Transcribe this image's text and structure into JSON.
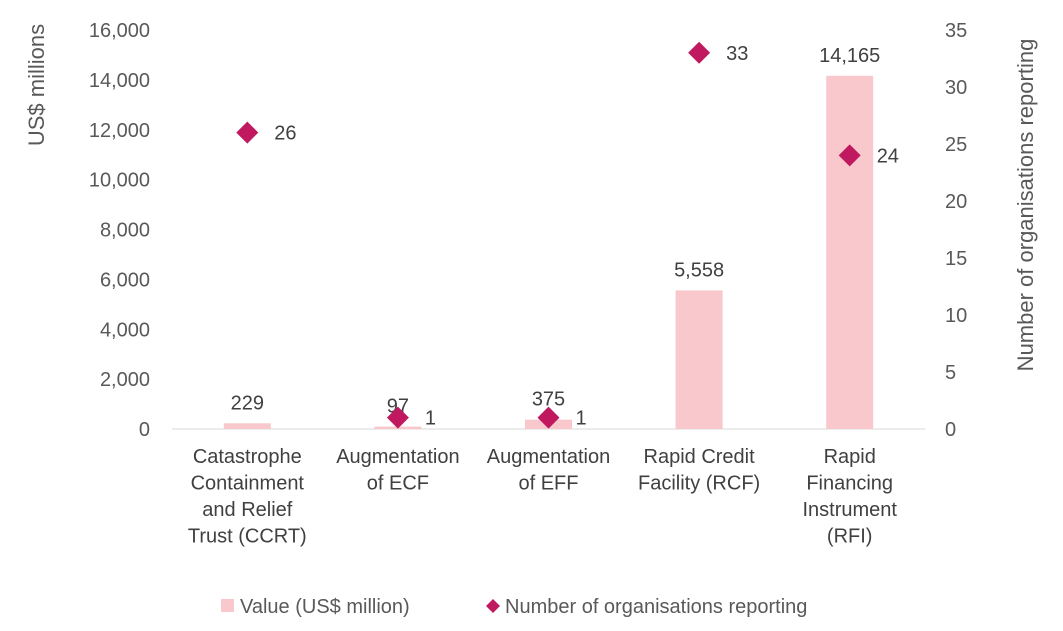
{
  "chart_data": {
    "type": "bar",
    "categories": [
      [
        "Catastrophe",
        "Containment",
        "and Relief",
        "Trust (CCRT)"
      ],
      [
        "Augmentation",
        "of ECF"
      ],
      [
        "Augmentation",
        "of EFF"
      ],
      [
        "Rapid Credit",
        "Facility (RCF)"
      ],
      [
        "Rapid",
        "Financing",
        "Instrument",
        "(RFI)"
      ]
    ],
    "series": [
      {
        "name": "Value (US$ million)",
        "type": "bar",
        "axis": "left",
        "color": "#f8c8cc",
        "values": [
          229,
          97,
          375,
          5558,
          14165
        ],
        "labels": [
          "229",
          "97",
          "375",
          "5,558",
          "14,165"
        ]
      },
      {
        "name": "Number of organisations reporting",
        "type": "scatter",
        "marker": "diamond",
        "axis": "right",
        "color": "#c0195f",
        "values": [
          26,
          1,
          1,
          33,
          24
        ],
        "labels": [
          "26",
          "1",
          "1",
          "33",
          "24"
        ]
      }
    ],
    "ylabel": "US$ millions",
    "y2label": "Number of organisations reporting",
    "ylim": [
      0,
      16000
    ],
    "y2lim": [
      0,
      35
    ],
    "yticks": [
      "0",
      "2,000",
      "4,000",
      "6,000",
      "8,000",
      "10,000",
      "12,000",
      "14,000",
      "16,000"
    ],
    "y2ticks": [
      "0",
      "5",
      "10",
      "15",
      "20",
      "25",
      "30",
      "35"
    ],
    "grid": false,
    "legend": "bottom-center"
  }
}
